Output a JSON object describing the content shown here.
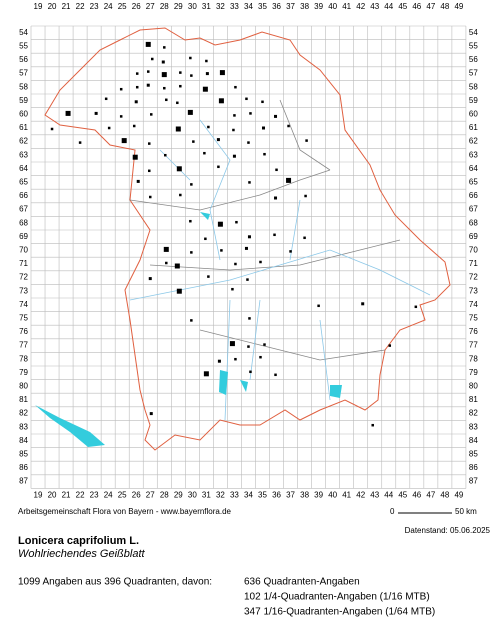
{
  "x_labels": [
    19,
    20,
    21,
    22,
    23,
    24,
    25,
    26,
    27,
    28,
    29,
    30,
    31,
    32,
    33,
    34,
    35,
    36,
    37,
    38,
    39,
    40,
    41,
    42,
    43,
    44,
    45,
    46,
    47,
    48,
    49
  ],
  "y_labels": [
    54,
    55,
    56,
    57,
    58,
    59,
    60,
    61,
    62,
    63,
    64,
    65,
    66,
    67,
    68,
    69,
    70,
    71,
    72,
    73,
    74,
    75,
    76,
    77,
    78,
    79,
    80,
    81,
    82,
    83,
    84,
    85,
    86,
    87
  ],
  "credit": "Arbeitsgemeinschaft Flora von Bayern - www.bayernflora.de",
  "scale": {
    "start": "0",
    "end": "50 km"
  },
  "date": "Datenstand: 05.06.2025",
  "species": {
    "name": "Lonicera caprifolium L.",
    "common": "Wohlriechendes Geißblatt"
  },
  "summary": "1099 Angaben aus 396 Quadranten, davon:",
  "counts": [
    "636 Quadranten-Angaben",
    "102 1/4-Quadranten-Angaben (1/16 MTB)",
    "347 1/16-Quadranten-Angaben (1/64 MTB)"
  ]
}
